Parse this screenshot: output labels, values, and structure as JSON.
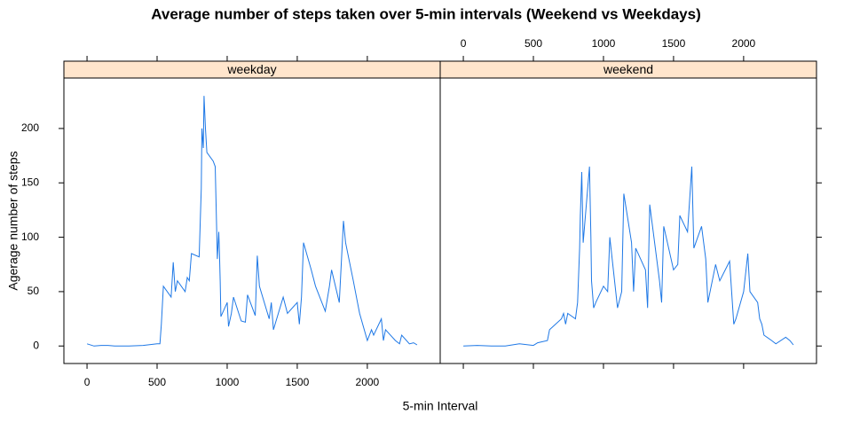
{
  "chart_data": {
    "type": "line",
    "title": "Average number of steps taken over 5-min intervals (Weekend vs Weekdays)",
    "x_label": "5-min Interval",
    "y_label": "Agerage number of steps",
    "color": "#1e78e6",
    "xlim": [
      -165,
      2520
    ],
    "ylim": [
      -16.1,
      246.4
    ],
    "xticks": [
      0,
      500,
      1000,
      1500,
      2000
    ],
    "yticks": [
      0,
      50,
      100,
      150,
      200
    ],
    "panels": [
      {
        "name": "weekday",
        "x": [
          0,
          50,
          100,
          150,
          200,
          300,
          400,
          500,
          520,
          530,
          545,
          600,
          615,
          630,
          645,
          700,
          715,
          730,
          745,
          800,
          815,
          820,
          830,
          835,
          845,
          855,
          900,
          915,
          930,
          940,
          945,
          950,
          955,
          1000,
          1010,
          1030,
          1045,
          1100,
          1130,
          1145,
          1200,
          1215,
          1230,
          1300,
          1315,
          1330,
          1400,
          1430,
          1500,
          1515,
          1530,
          1545,
          1600,
          1630,
          1700,
          1730,
          1745,
          1800,
          1830,
          1845,
          1900,
          1930,
          1945,
          2000,
          2030,
          2045,
          2100,
          2115,
          2130,
          2200,
          2230,
          2245,
          2300,
          2330,
          2355
        ],
        "values": [
          2,
          0,
          0.5,
          0.5,
          0,
          0,
          0.5,
          2,
          2,
          20,
          55,
          45,
          77,
          50,
          60,
          50,
          63,
          60,
          85,
          82,
          145,
          200,
          182,
          230,
          200,
          178,
          170,
          165,
          80,
          105,
          85,
          60,
          27,
          40,
          18,
          30,
          45,
          23,
          22,
          47,
          28,
          83,
          55,
          25,
          40,
          15,
          45,
          30,
          40,
          20,
          45,
          95,
          70,
          55,
          32,
          55,
          70,
          40,
          115,
          95,
          60,
          40,
          30,
          5,
          15,
          10,
          25,
          5,
          15,
          5,
          2,
          10,
          2,
          3,
          1
        ]
      },
      {
        "name": "weekend",
        "x": [
          0,
          100,
          200,
          300,
          400,
          500,
          530,
          600,
          615,
          700,
          715,
          730,
          745,
          800,
          815,
          830,
          835,
          845,
          855,
          900,
          910,
          915,
          930,
          945,
          1000,
          1030,
          1045,
          1100,
          1130,
          1145,
          1200,
          1215,
          1230,
          1300,
          1315,
          1330,
          1400,
          1415,
          1430,
          1500,
          1530,
          1545,
          1600,
          1630,
          1645,
          1700,
          1730,
          1745,
          1800,
          1830,
          1900,
          1930,
          1945,
          2000,
          2030,
          2045,
          2100,
          2115,
          2130,
          2145,
          2200,
          2230,
          2300,
          2330,
          2355
        ],
        "values": [
          0,
          0.5,
          0,
          0,
          2,
          0.5,
          3,
          5,
          15,
          25,
          30,
          20,
          30,
          25,
          40,
          90,
          120,
          160,
          95,
          165,
          100,
          60,
          35,
          40,
          55,
          50,
          100,
          35,
          50,
          140,
          95,
          50,
          90,
          70,
          35,
          130,
          60,
          40,
          110,
          70,
          75,
          120,
          105,
          165,
          90,
          110,
          80,
          40,
          75,
          60,
          78,
          20,
          25,
          50,
          85,
          50,
          40,
          25,
          20,
          10,
          5,
          2,
          8,
          5,
          1
        ]
      }
    ]
  }
}
